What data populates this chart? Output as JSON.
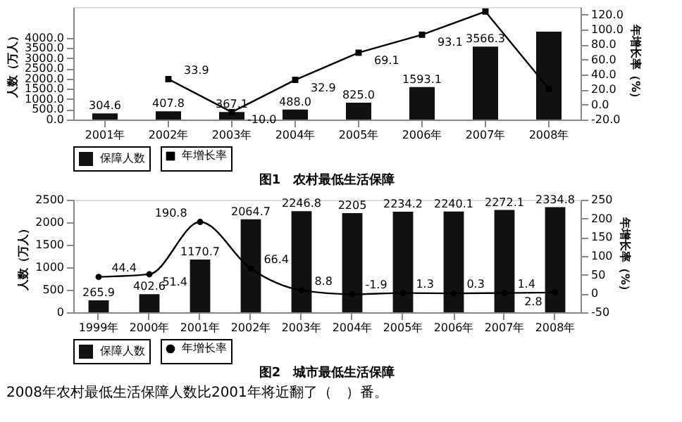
{
  "chart_data": [
    {
      "type": "bar",
      "title": "图1　农村最低生活保障",
      "ylabel": "人数（万人）",
      "y2label": "年增长率（%）",
      "categories": [
        "2001年",
        "2002年",
        "2003年",
        "2004年",
        "2005年",
        "2006年",
        "2007年",
        "2008年"
      ],
      "series": [
        {
          "name": "保障人数",
          "type": "bar",
          "color": "#111111",
          "values": [
            304.6,
            407.8,
            367.1,
            488.0,
            825.0,
            1593.1,
            3566.3,
            4300
          ],
          "value_labels": [
            "304.6",
            "407.8",
            "367.1",
            "488.0",
            "825.0",
            "1593.1",
            "3566.3",
            null
          ]
        },
        {
          "name": "年增长率",
          "type": "line",
          "axis": "y2",
          "color": "#000000",
          "marker": "square",
          "values": [
            null,
            33.9,
            -10.0,
            32.9,
            69.1,
            93.1,
            124,
            21
          ],
          "value_labels": [
            null,
            "33.9",
            "-10.0",
            "32.9",
            "69.1",
            "93.1",
            null,
            null
          ]
        }
      ],
      "ylim": [
        0,
        5500
      ],
      "yticks": [
        {
          "value": 0,
          "label": "0.0"
        },
        {
          "value": 500,
          "label": "500.0"
        },
        {
          "value": 1000,
          "label": "1000.0"
        },
        {
          "value": 1500,
          "label": "1500.0"
        },
        {
          "value": 2000,
          "label": "2000.0"
        },
        {
          "value": 2500,
          "label": "2500.0"
        },
        {
          "value": 3000,
          "label": "3000.0"
        },
        {
          "value": 3500,
          "label": "3500.0"
        },
        {
          "value": 4000,
          "label": "4000.0"
        }
      ],
      "y2lim": [
        -20,
        130
      ],
      "y2ticks": [
        {
          "value": -20,
          "label": "-20.0"
        },
        {
          "value": 0,
          "label": "0.0"
        },
        {
          "value": 20,
          "label": "20.0"
        },
        {
          "value": 40,
          "label": "40.0"
        },
        {
          "value": 60,
          "label": "60.0"
        },
        {
          "value": 80,
          "label": "80.0"
        },
        {
          "value": 100,
          "label": "100.0"
        },
        {
          "value": 120,
          "label": "120.0"
        }
      ],
      "legend": "bottom",
      "grid": false
    },
    {
      "type": "bar",
      "title": "图2　城市最低生活保障",
      "ylabel": "人数（万人）",
      "y2label": "年增长率（%）",
      "categories": [
        "1999年",
        "2000年",
        "2001年",
        "2002年",
        "2003年",
        "2004年",
        "2005年",
        "2006年",
        "2007年",
        "2008年"
      ],
      "series": [
        {
          "name": "保障人数",
          "type": "bar",
          "color": "#111111",
          "values": [
            265.9,
            402.6,
            1170.7,
            2064.7,
            2246.8,
            2205,
            2234.2,
            2240.1,
            2272.1,
            2334.8
          ]
        },
        {
          "name": "年增长率",
          "type": "line",
          "axis": "y2",
          "color": "#000000",
          "marker": "circle",
          "values": [
            44.4,
            51.4,
            190.8,
            66.4,
            8.8,
            -1.9,
            1.3,
            0.3,
            1.4,
            2.8
          ]
        }
      ],
      "ylim": [
        0,
        2500
      ],
      "yticks": [
        0,
        500,
        1000,
        1500,
        2000,
        2500
      ],
      "y2lim": [
        -50,
        250
      ],
      "y2ticks": [
        -50,
        0,
        50,
        100,
        150,
        200,
        250
      ],
      "data_labels": true,
      "legend": "bottom",
      "grid": false,
      "annotations": [
        "2008年农村最低生活保障人数比2001年将近翻了（　）番。"
      ]
    }
  ]
}
